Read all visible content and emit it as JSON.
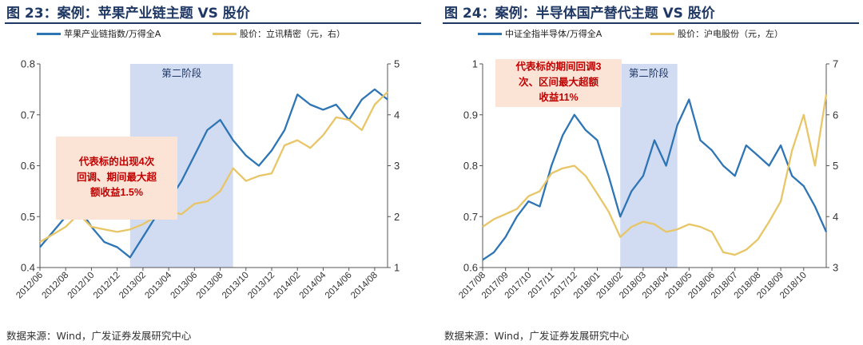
{
  "chart_data": [
    {
      "type": "line",
      "title": "图 23：案例：苹果产业链主题 VS 股价",
      "x_ticks": [
        "2012/06",
        "2012/08",
        "2012/10",
        "2012/12",
        "2013/02",
        "2013/04",
        "2013/06",
        "2013/08",
        "2013/10",
        "2013/12",
        "2014/02",
        "2014/04",
        "2014/06",
        "2014/08"
      ],
      "ylim": [
        0.4,
        0.8
      ],
      "y_ticks": [
        "0.4",
        "0.5",
        "0.6",
        "0.7",
        "0.8"
      ],
      "y2lim": [
        1,
        5
      ],
      "y2_ticks": [
        "1",
        "2",
        "3",
        "4",
        "5"
      ],
      "legend_placement": "top",
      "series": [
        {
          "name": "苹果产业链指数/万得全A",
          "axis": "left",
          "color": "#2e75b6",
          "x": [
            "2012/06",
            "2012/07",
            "2012/08",
            "2012/09",
            "2012/10",
            "2012/11",
            "2012/12",
            "2013/01",
            "2013/02",
            "2013/03",
            "2013/04",
            "2013/05",
            "2013/06",
            "2013/07",
            "2013/08",
            "2013/09",
            "2013/10",
            "2013/11",
            "2013/12",
            "2014/01",
            "2014/02",
            "2014/03",
            "2014/04",
            "2014/05",
            "2014/06",
            "2014/07",
            "2014/08",
            "2014/09"
          ],
          "values": [
            0.44,
            0.47,
            0.5,
            0.52,
            0.48,
            0.45,
            0.44,
            0.42,
            0.46,
            0.5,
            0.53,
            0.57,
            0.62,
            0.67,
            0.69,
            0.65,
            0.62,
            0.6,
            0.63,
            0.67,
            0.74,
            0.72,
            0.71,
            0.72,
            0.69,
            0.73,
            0.75,
            0.73
          ]
        },
        {
          "name": "股价：立讯精密（元，右）",
          "axis": "right",
          "color": "#e8c667",
          "x": [
            "2012/06",
            "2012/07",
            "2012/08",
            "2012/09",
            "2012/10",
            "2012/11",
            "2012/12",
            "2013/01",
            "2013/02",
            "2013/03",
            "2013/04",
            "2013/05",
            "2013/06",
            "2013/07",
            "2013/08",
            "2013/09",
            "2013/10",
            "2013/11",
            "2013/12",
            "2014/01",
            "2014/02",
            "2014/03",
            "2014/04",
            "2014/05",
            "2014/06",
            "2014/07",
            "2014/08",
            "2014/09"
          ],
          "values": [
            1.5,
            1.65,
            1.8,
            2.05,
            1.8,
            1.75,
            1.7,
            1.75,
            1.85,
            2.0,
            2.1,
            2.05,
            2.25,
            2.3,
            2.5,
            2.95,
            2.7,
            2.8,
            2.85,
            3.4,
            3.5,
            3.35,
            3.6,
            3.95,
            3.9,
            3.7,
            4.2,
            4.45
          ]
        }
      ],
      "shaded_region": {
        "label": "第二阶段",
        "from": "2013/01",
        "to": "2013/09"
      },
      "annotation": "代表标的出现4次回调、期间最大超额收益1.5%",
      "source": "数据来源：Wind，广发证券发展研究中心"
    },
    {
      "type": "line",
      "title": "图 24：案例：半导体国产替代主题 VS 股价",
      "x_ticks": [
        "2017/08",
        "2017/09",
        "2017/10",
        "2017/11",
        "2017/12",
        "2018/01",
        "2018/02",
        "2018/03",
        "2018/04",
        "2018/05",
        "2018/06",
        "2018/07",
        "2018/08",
        "2018/09",
        "2018/10"
      ],
      "ylim": [
        0.6,
        1.0
      ],
      "y_ticks": [
        "0.6",
        "0.7",
        "0.8",
        "0.9",
        "1"
      ],
      "y2lim": [
        3,
        7
      ],
      "y2_ticks": [
        "3",
        "4",
        "5",
        "6",
        "7"
      ],
      "legend_placement": "top",
      "series": [
        {
          "name": "中证全指半导体/万得全A",
          "axis": "left",
          "color": "#2e75b6",
          "x": [
            "2017/08",
            "2017/08/16",
            "2017/09",
            "2017/09/16",
            "2017/10",
            "2017/10/16",
            "2017/11",
            "2017/11/16",
            "2017/12",
            "2017/12/16",
            "2018/01",
            "2018/01/16",
            "2018/02",
            "2018/02/16",
            "2018/03",
            "2018/03/16",
            "2018/04",
            "2018/04/16",
            "2018/05",
            "2018/05/16",
            "2018/06",
            "2018/06/16",
            "2018/07",
            "2018/07/16",
            "2018/08",
            "2018/08/16",
            "2018/09",
            "2018/09/16",
            "2018/10",
            "2018/10/16",
            "2018/10/31"
          ],
          "values": [
            0.615,
            0.63,
            0.66,
            0.7,
            0.73,
            0.72,
            0.8,
            0.86,
            0.9,
            0.87,
            0.85,
            0.78,
            0.7,
            0.75,
            0.78,
            0.85,
            0.8,
            0.88,
            0.93,
            0.85,
            0.83,
            0.8,
            0.78,
            0.84,
            0.82,
            0.8,
            0.84,
            0.78,
            0.76,
            0.72,
            0.67
          ]
        },
        {
          "name": "股价：沪电股份（元，左）",
          "axis": "right",
          "color": "#e8c667",
          "x": [
            "2017/08",
            "2017/08/16",
            "2017/09",
            "2017/09/16",
            "2017/10",
            "2017/10/16",
            "2017/11",
            "2017/11/16",
            "2017/12",
            "2017/12/16",
            "2018/01",
            "2018/01/16",
            "2018/02",
            "2018/02/16",
            "2018/03",
            "2018/03/16",
            "2018/04",
            "2018/04/16",
            "2018/05",
            "2018/05/16",
            "2018/06",
            "2018/06/16",
            "2018/07",
            "2018/07/16",
            "2018/08",
            "2018/08/16",
            "2018/09",
            "2018/09/16",
            "2018/10",
            "2018/10/16",
            "2018/10/31"
          ],
          "values": [
            3.8,
            3.95,
            4.05,
            4.15,
            4.4,
            4.5,
            4.85,
            4.95,
            5.0,
            4.8,
            4.45,
            4.1,
            3.6,
            3.8,
            3.9,
            3.85,
            3.7,
            3.75,
            3.85,
            3.8,
            3.7,
            3.3,
            3.25,
            3.35,
            3.55,
            3.9,
            4.3,
            5.3,
            6.0,
            5.0,
            6.4
          ]
        }
      ],
      "shaded_region": {
        "label": "第二阶段",
        "from": "2018/02",
        "to": "2018/04/16"
      },
      "annotation": "代表标的期间回调3次、区间最大超额收益11%",
      "source": "数据来源：Wind，广发证券发展研究中心"
    }
  ]
}
